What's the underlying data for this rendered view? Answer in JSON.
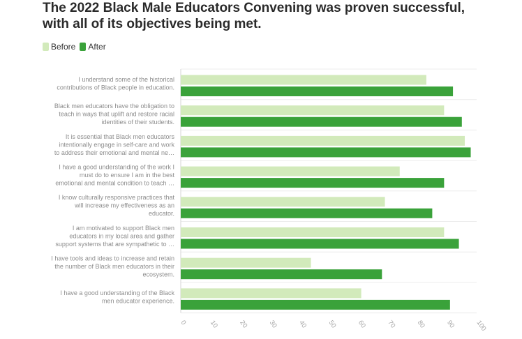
{
  "title_line1": "The 2022 Black Male Educators Convening was proven successful,",
  "title_line2": "with all of its objectives being met.",
  "legend": [
    {
      "label": "Before",
      "color": "#d2eabb"
    },
    {
      "label": "After",
      "color": "#3aa23a"
    }
  ],
  "chart_data": {
    "type": "bar",
    "orientation": "horizontal",
    "title": "The 2022 Black Male Educators Convening was proven successful, with all of its objectives being met.",
    "categories": [
      [
        "I understand some of the historical",
        "contributions of Black people in education."
      ],
      [
        "Black men educators have the obligation to",
        "teach in ways that uplift and restore racial",
        "identities of their students."
      ],
      [
        "It is essential that Black men educators",
        "intentionally engage in self-care and work",
        "to address their emotional and mental ne…"
      ],
      [
        "I have a good understanding of the work I",
        "must do to ensure I am in the best",
        "emotional and mental condition to teach …"
      ],
      [
        "I know culturally responsive practices that",
        "will increase my effectiveness as an",
        "educator."
      ],
      [
        "I am motivated to support Black men",
        "educators in my local area and gather",
        "support systems that are sympathetic to …"
      ],
      [
        "I have tools and ideas to increase and retain",
        "the number of Black men educators in their",
        "ecosystem."
      ],
      [
        "I have a good understanding of the Black",
        "men educator experience."
      ]
    ],
    "series": [
      {
        "name": "Before",
        "values": [
          83,
          89,
          96,
          74,
          69,
          89,
          44,
          61
        ]
      },
      {
        "name": "After",
        "values": [
          92,
          95,
          98,
          89,
          85,
          94,
          68,
          91
        ]
      }
    ],
    "xlim": [
      0,
      100
    ],
    "ticks": [
      "0",
      "10",
      "20",
      "30",
      "40",
      "50",
      "60",
      "70",
      "80",
      "90",
      "100"
    ],
    "xlabel": "",
    "ylabel": "",
    "legend_position": "top-left",
    "grid": true
  }
}
